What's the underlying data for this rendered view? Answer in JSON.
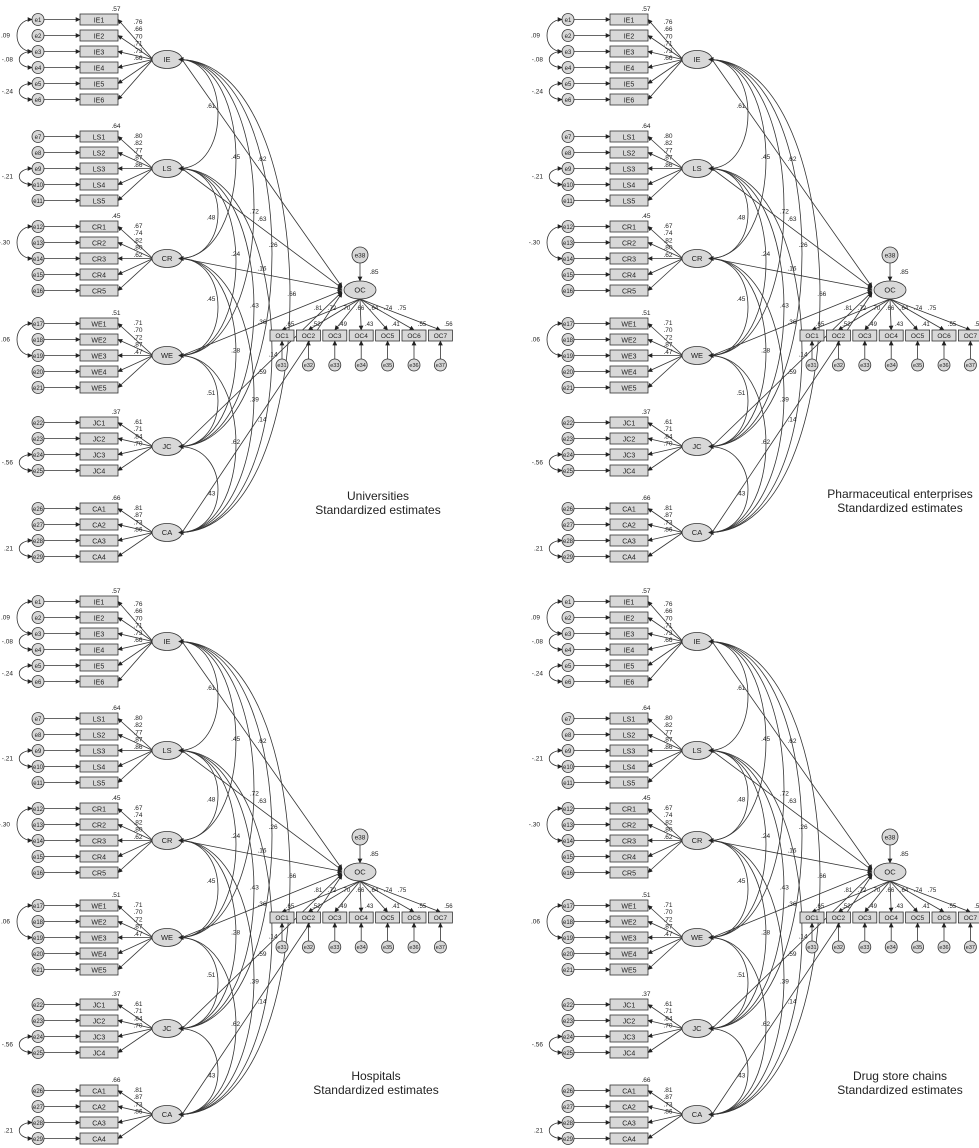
{
  "panels": [
    {
      "caption": [
        "Universities",
        "Standardized estimates"
      ]
    },
    {
      "caption": [
        "Pharmaceutical enterprises",
        "Standardized estimates"
      ]
    },
    {
      "caption": [
        "Hospitals",
        "Standardized estimates"
      ]
    },
    {
      "caption": [
        "Drug store chains",
        "Standardized estimates"
      ]
    }
  ],
  "factors": [
    {
      "name": "IE",
      "r2": ".57",
      "items": [
        "IE1",
        "IE2",
        "IE3",
        "IE4",
        "IE5",
        "IE6"
      ],
      "errors": [
        "e1",
        "e2",
        "e3",
        "e4",
        "e5",
        "e6"
      ],
      "loadings": [
        ".76",
        ".66",
        ".70",
        ".71",
        ".73",
        ".66"
      ]
    },
    {
      "name": "LS",
      "r2": ".64",
      "items": [
        "LS1",
        "LS2",
        "LS3",
        "LS4",
        "LS5"
      ],
      "errors": [
        "e7",
        "e8",
        "e9",
        "e10",
        "e11"
      ],
      "loadings": [
        ".80",
        ".82",
        ".77",
        ".87",
        ".86"
      ]
    },
    {
      "name": "CR",
      "r2": ".45",
      "items": [
        "CR1",
        "CR2",
        "CR3",
        "CR4",
        "CR5"
      ],
      "errors": [
        "e12",
        "e13",
        "e14",
        "e15",
        "e16"
      ],
      "loadings": [
        ".67",
        ".74",
        ".82",
        ".80",
        ".62"
      ]
    },
    {
      "name": "WE",
      "r2": ".51",
      "items": [
        "WE1",
        "WE2",
        "WE3",
        "WE4",
        "WE5"
      ],
      "errors": [
        "e17",
        "e18",
        "e19",
        "e20",
        "e21"
      ],
      "loadings": [
        ".71",
        ".70",
        ".72",
        ".87",
        ".47"
      ]
    },
    {
      "name": "JC",
      "r2": ".37",
      "items": [
        "JC1",
        "JC2",
        "JC3",
        "JC4"
      ],
      "errors": [
        "e22",
        "e23",
        "e24",
        "e25"
      ],
      "loadings": [
        ".61",
        ".71",
        ".84",
        ".70"
      ]
    },
    {
      "name": "CA",
      "r2": ".66",
      "items": [
        "CA1",
        "CA2",
        "CA3",
        "CA4"
      ],
      "errors": [
        "e26",
        "e27",
        "e28",
        "e29"
      ],
      "loadings": [
        ".81",
        ".87",
        ".73",
        ".86"
      ]
    }
  ],
  "error_covariances": [
    {
      "factor": 0,
      "from": 0,
      "to": 2,
      "value": ".09"
    },
    {
      "factor": 0,
      "from": 2,
      "to": 3,
      "value": "-.08"
    },
    {
      "factor": 0,
      "from": 4,
      "to": 5,
      "value": "-.24"
    },
    {
      "factor": 1,
      "from": 2,
      "to": 3,
      "value": "-.21"
    },
    {
      "factor": 2,
      "from": 0,
      "to": 2,
      "value": "-.30"
    },
    {
      "factor": 3,
      "from": 0,
      "to": 2,
      "value": ".06"
    },
    {
      "factor": 4,
      "from": 2,
      "to": 3,
      "value": "-.56"
    },
    {
      "factor": 5,
      "from": 2,
      "to": 3,
      "value": ".21"
    }
  ],
  "factor_covariances": [
    {
      "a": 0,
      "b": 1,
      "value": ".61"
    },
    {
      "a": 0,
      "b": 2,
      "value": ".45"
    },
    {
      "a": 0,
      "b": 3,
      "value": ".72"
    },
    {
      "a": 0,
      "b": 4,
      "value": ".26"
    },
    {
      "a": 0,
      "b": 5,
      "value": ".66"
    },
    {
      "a": 1,
      "b": 2,
      "value": ".48"
    },
    {
      "a": 1,
      "b": 3,
      "value": ".24"
    },
    {
      "a": 1,
      "b": 4,
      "value": ".43"
    },
    {
      "a": 1,
      "b": 5,
      "value": ".14"
    },
    {
      "a": 2,
      "b": 3,
      "value": ".45"
    },
    {
      "a": 2,
      "b": 4,
      "value": ".28"
    },
    {
      "a": 2,
      "b": 5,
      "value": ".39"
    },
    {
      "a": 3,
      "b": 4,
      "value": ".51"
    },
    {
      "a": 3,
      "b": 5,
      "value": ".62"
    },
    {
      "a": 4,
      "b": 5,
      "value": ".43"
    }
  ],
  "paths_to_oc": [
    ".62",
    ".63",
    ".16",
    ".36",
    ".59",
    ".14"
  ],
  "outcome": {
    "name": "OC",
    "r2": ".85",
    "disturbance": "e38",
    "items": [
      "OC1",
      "OC2",
      "OC3",
      "OC4",
      "OC5",
      "OC6",
      "OC7"
    ],
    "errors": [
      "e31",
      "e32",
      "e33",
      "e34",
      "e35",
      "e36",
      "e37"
    ],
    "loadings": [
      ".81",
      ".72",
      ".70",
      ".66",
      ".64",
      ".74",
      ".75"
    ],
    "item_r2": [
      ".65",
      ".52",
      ".49",
      ".43",
      ".41",
      ".55",
      ".56"
    ]
  }
}
